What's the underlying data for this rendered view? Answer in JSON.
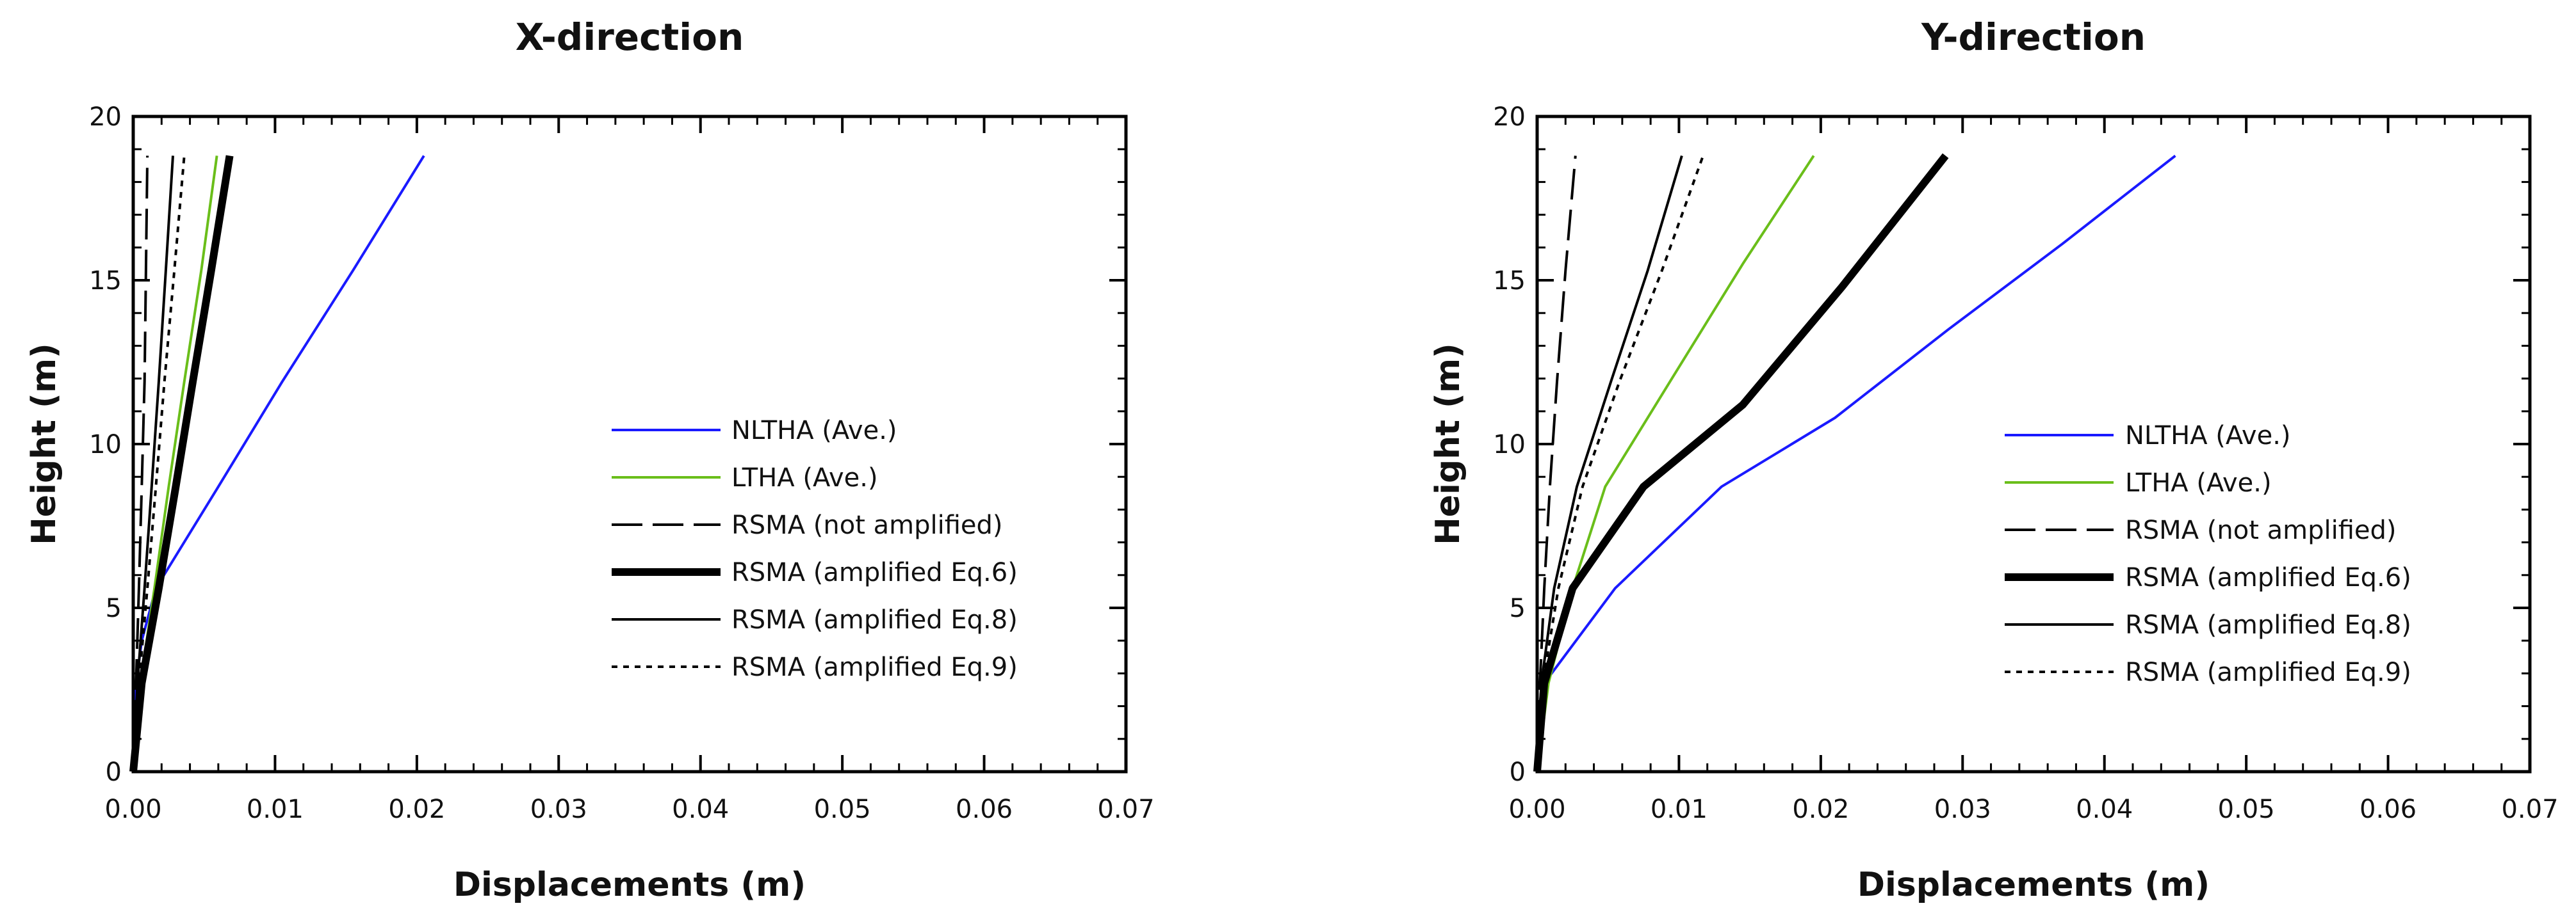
{
  "chart_data": [
    {
      "type": "line",
      "title": "X-direction",
      "xlabel": "Displacements (m)",
      "ylabel": "Height (m)",
      "xlim": [
        0,
        0.07
      ],
      "ylim": [
        0,
        20
      ],
      "x_ticks": [
        "0.00",
        "0.01",
        "0.02",
        "0.03",
        "0.04",
        "0.05",
        "0.06",
        "0.07"
      ],
      "y_ticks": [
        "0",
        "5",
        "10",
        "15",
        "20"
      ],
      "grid": false,
      "legend_position": "center-right",
      "series": [
        {
          "name": "NLTHA (Ave.)",
          "color": "#1a1aff",
          "style": "solid",
          "weight": "thin",
          "x": [
            0,
            0.0002,
            0.0006,
            0.0016,
            0.006,
            0.0105,
            0.0155,
            0.0205
          ],
          "y": [
            0,
            2.7,
            4.0,
            5.6,
            8.7,
            11.9,
            15.3,
            18.8
          ]
        },
        {
          "name": "LTHA (Ave.)",
          "color": "#6abe1a",
          "style": "solid",
          "weight": "thin",
          "x": [
            0,
            0.0005,
            0.0015,
            0.0025,
            0.0036,
            0.0048,
            0.0059
          ],
          "y": [
            0,
            2.7,
            5.6,
            8.7,
            11.9,
            15.3,
            18.8
          ]
        },
        {
          "name": "RSMA (not amplified)",
          "color": "#000000",
          "style": "dash",
          "weight": "thin",
          "x": [
            0,
            0.0002,
            0.0004,
            0.0006,
            0.0008,
            0.001
          ],
          "y": [
            0,
            2.7,
            5.6,
            8.7,
            11.9,
            18.8
          ]
        },
        {
          "name": "RSMA (amplified Eq.6)",
          "color": "#000000",
          "style": "solid",
          "weight": "thick",
          "x": [
            0,
            0.0006,
            0.0018,
            0.003,
            0.0042,
            0.0055,
            0.0068
          ],
          "y": [
            0,
            2.7,
            5.6,
            8.7,
            11.9,
            15.3,
            18.8
          ]
        },
        {
          "name": "RSMA (amplified Eq.8)",
          "color": "#000000",
          "style": "solid",
          "weight": "thin",
          "x": [
            0,
            0.0003,
            0.0008,
            0.0013,
            0.0018,
            0.0023,
            0.0028
          ],
          "y": [
            0,
            2.7,
            5.6,
            8.7,
            11.9,
            15.3,
            18.8
          ]
        },
        {
          "name": "RSMA (amplified Eq.9)",
          "color": "#000000",
          "style": "dot",
          "weight": "thin",
          "x": [
            0,
            0.0004,
            0.001,
            0.0016,
            0.0022,
            0.0029,
            0.0036
          ],
          "y": [
            0,
            2.7,
            5.6,
            8.7,
            11.9,
            15.3,
            18.8
          ]
        }
      ]
    },
    {
      "type": "line",
      "title": "Y-direction",
      "xlabel": "Displacements (m)",
      "ylabel": "Height (m)",
      "xlim": [
        0,
        0.07
      ],
      "ylim": [
        0,
        20
      ],
      "x_ticks": [
        "0.00",
        "0.01",
        "0.02",
        "0.03",
        "0.04",
        "0.05",
        "0.06",
        "0.07"
      ],
      "y_ticks": [
        "0",
        "5",
        "10",
        "15",
        "20"
      ],
      "grid": false,
      "legend_position": "center-right",
      "series": [
        {
          "name": "NLTHA (Ave.)",
          "color": "#1a1aff",
          "style": "solid",
          "weight": "thin",
          "x": [
            0,
            0.0005,
            0.0055,
            0.013,
            0.021,
            0.029,
            0.037,
            0.045
          ],
          "y": [
            0,
            2.7,
            5.6,
            8.7,
            10.8,
            13.5,
            16.1,
            18.8
          ]
        },
        {
          "name": "LTHA (Ave.)",
          "color": "#6abe1a",
          "style": "solid",
          "weight": "thin",
          "x": [
            0,
            0.0008,
            0.0025,
            0.0048,
            0.0095,
            0.0145,
            0.0195
          ],
          "y": [
            0,
            2.7,
            5.6,
            8.7,
            12.0,
            15.5,
            18.8
          ]
        },
        {
          "name": "RSMA (not amplified)",
          "color": "#000000",
          "style": "dash",
          "weight": "thin",
          "x": [
            0,
            0.0002,
            0.0005,
            0.0009,
            0.0014,
            0.002,
            0.0027
          ],
          "y": [
            0,
            2.7,
            5.6,
            8.7,
            11.9,
            15.3,
            18.8
          ]
        },
        {
          "name": "RSMA (amplified Eq.6)",
          "color": "#000000",
          "style": "solid",
          "weight": "thick",
          "x": [
            0,
            0.0005,
            0.0025,
            0.0075,
            0.0145,
            0.0215,
            0.0288
          ],
          "y": [
            0,
            2.7,
            5.6,
            8.7,
            11.2,
            14.8,
            18.8
          ]
        },
        {
          "name": "RSMA (amplified Eq.8)",
          "color": "#000000",
          "style": "solid",
          "weight": "thin",
          "x": [
            0,
            0.0003,
            0.0012,
            0.0028,
            0.0052,
            0.0078,
            0.0102
          ],
          "y": [
            0,
            2.7,
            5.6,
            8.7,
            11.9,
            15.3,
            18.8
          ]
        },
        {
          "name": "RSMA (amplified Eq.9)",
          "color": "#000000",
          "style": "dot",
          "weight": "thin",
          "x": [
            0,
            0.0004,
            0.0015,
            0.0032,
            0.0058,
            0.0088,
            0.0117
          ],
          "y": [
            0,
            2.7,
            5.6,
            8.7,
            11.9,
            15.3,
            18.8
          ]
        }
      ]
    }
  ]
}
